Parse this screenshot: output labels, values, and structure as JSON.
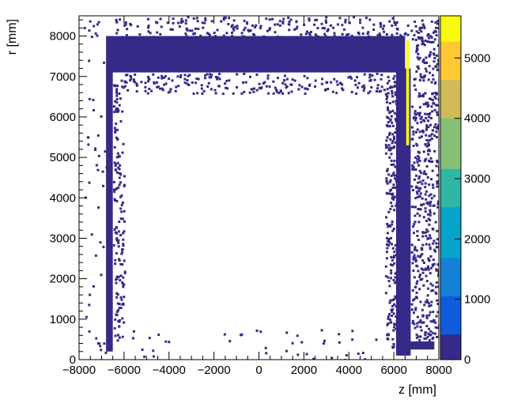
{
  "chart_data": {
    "type": "heatmap",
    "title": "",
    "xlabel": "z [mm]",
    "ylabel": "r [mm]",
    "xlim": [
      -8000,
      8000
    ],
    "ylim": [
      0,
      8500
    ],
    "zlim": [
      0,
      5700
    ],
    "x_ticks": [
      -8000,
      -6000,
      -4000,
      -2000,
      0,
      2000,
      4000,
      6000,
      8000
    ],
    "x_tick_labels": [
      "−8000",
      "−6000",
      "−4000",
      "−2000",
      "0",
      "2000",
      "4000",
      "6000",
      "8000"
    ],
    "y_ticks": [
      0,
      1000,
      2000,
      3000,
      4000,
      5000,
      6000,
      7000,
      8000
    ],
    "y_tick_labels": [
      "0",
      "1000",
      "2000",
      "3000",
      "4000",
      "5000",
      "6000",
      "7000",
      "8000"
    ],
    "z_ticks": [
      0,
      1000,
      2000,
      3000,
      4000,
      5000
    ],
    "z_tick_labels": [
      "0",
      "1000",
      "2000",
      "3000",
      "4000",
      "5000"
    ],
    "colormap": [
      "#352a87",
      "#0f5cdd",
      "#1481d6",
      "#06a4ca",
      "#2eb7a4",
      "#87bf77",
      "#d1bb59",
      "#fec832",
      "#f9fb0e"
    ],
    "grid": false,
    "regions": [
      {
        "name": "barrel",
        "z": [
          -6800,
          6500
        ],
        "r": [
          7100,
          8000
        ],
        "value": 60
      },
      {
        "name": "left-wall",
        "z": [
          -6800,
          -6500
        ],
        "r": [
          200,
          7200
        ],
        "value": 25
      },
      {
        "name": "right-wall",
        "z": [
          6100,
          6750
        ],
        "r": [
          100,
          7200
        ],
        "value": 35
      },
      {
        "name": "right-hotspot",
        "z": [
          6550,
          6680
        ],
        "r": [
          5300,
          7900
        ],
        "value": 5500
      },
      {
        "name": "bottom-right",
        "z": [
          6600,
          7800
        ],
        "r": [
          250,
          450
        ],
        "value": 40
      }
    ]
  }
}
